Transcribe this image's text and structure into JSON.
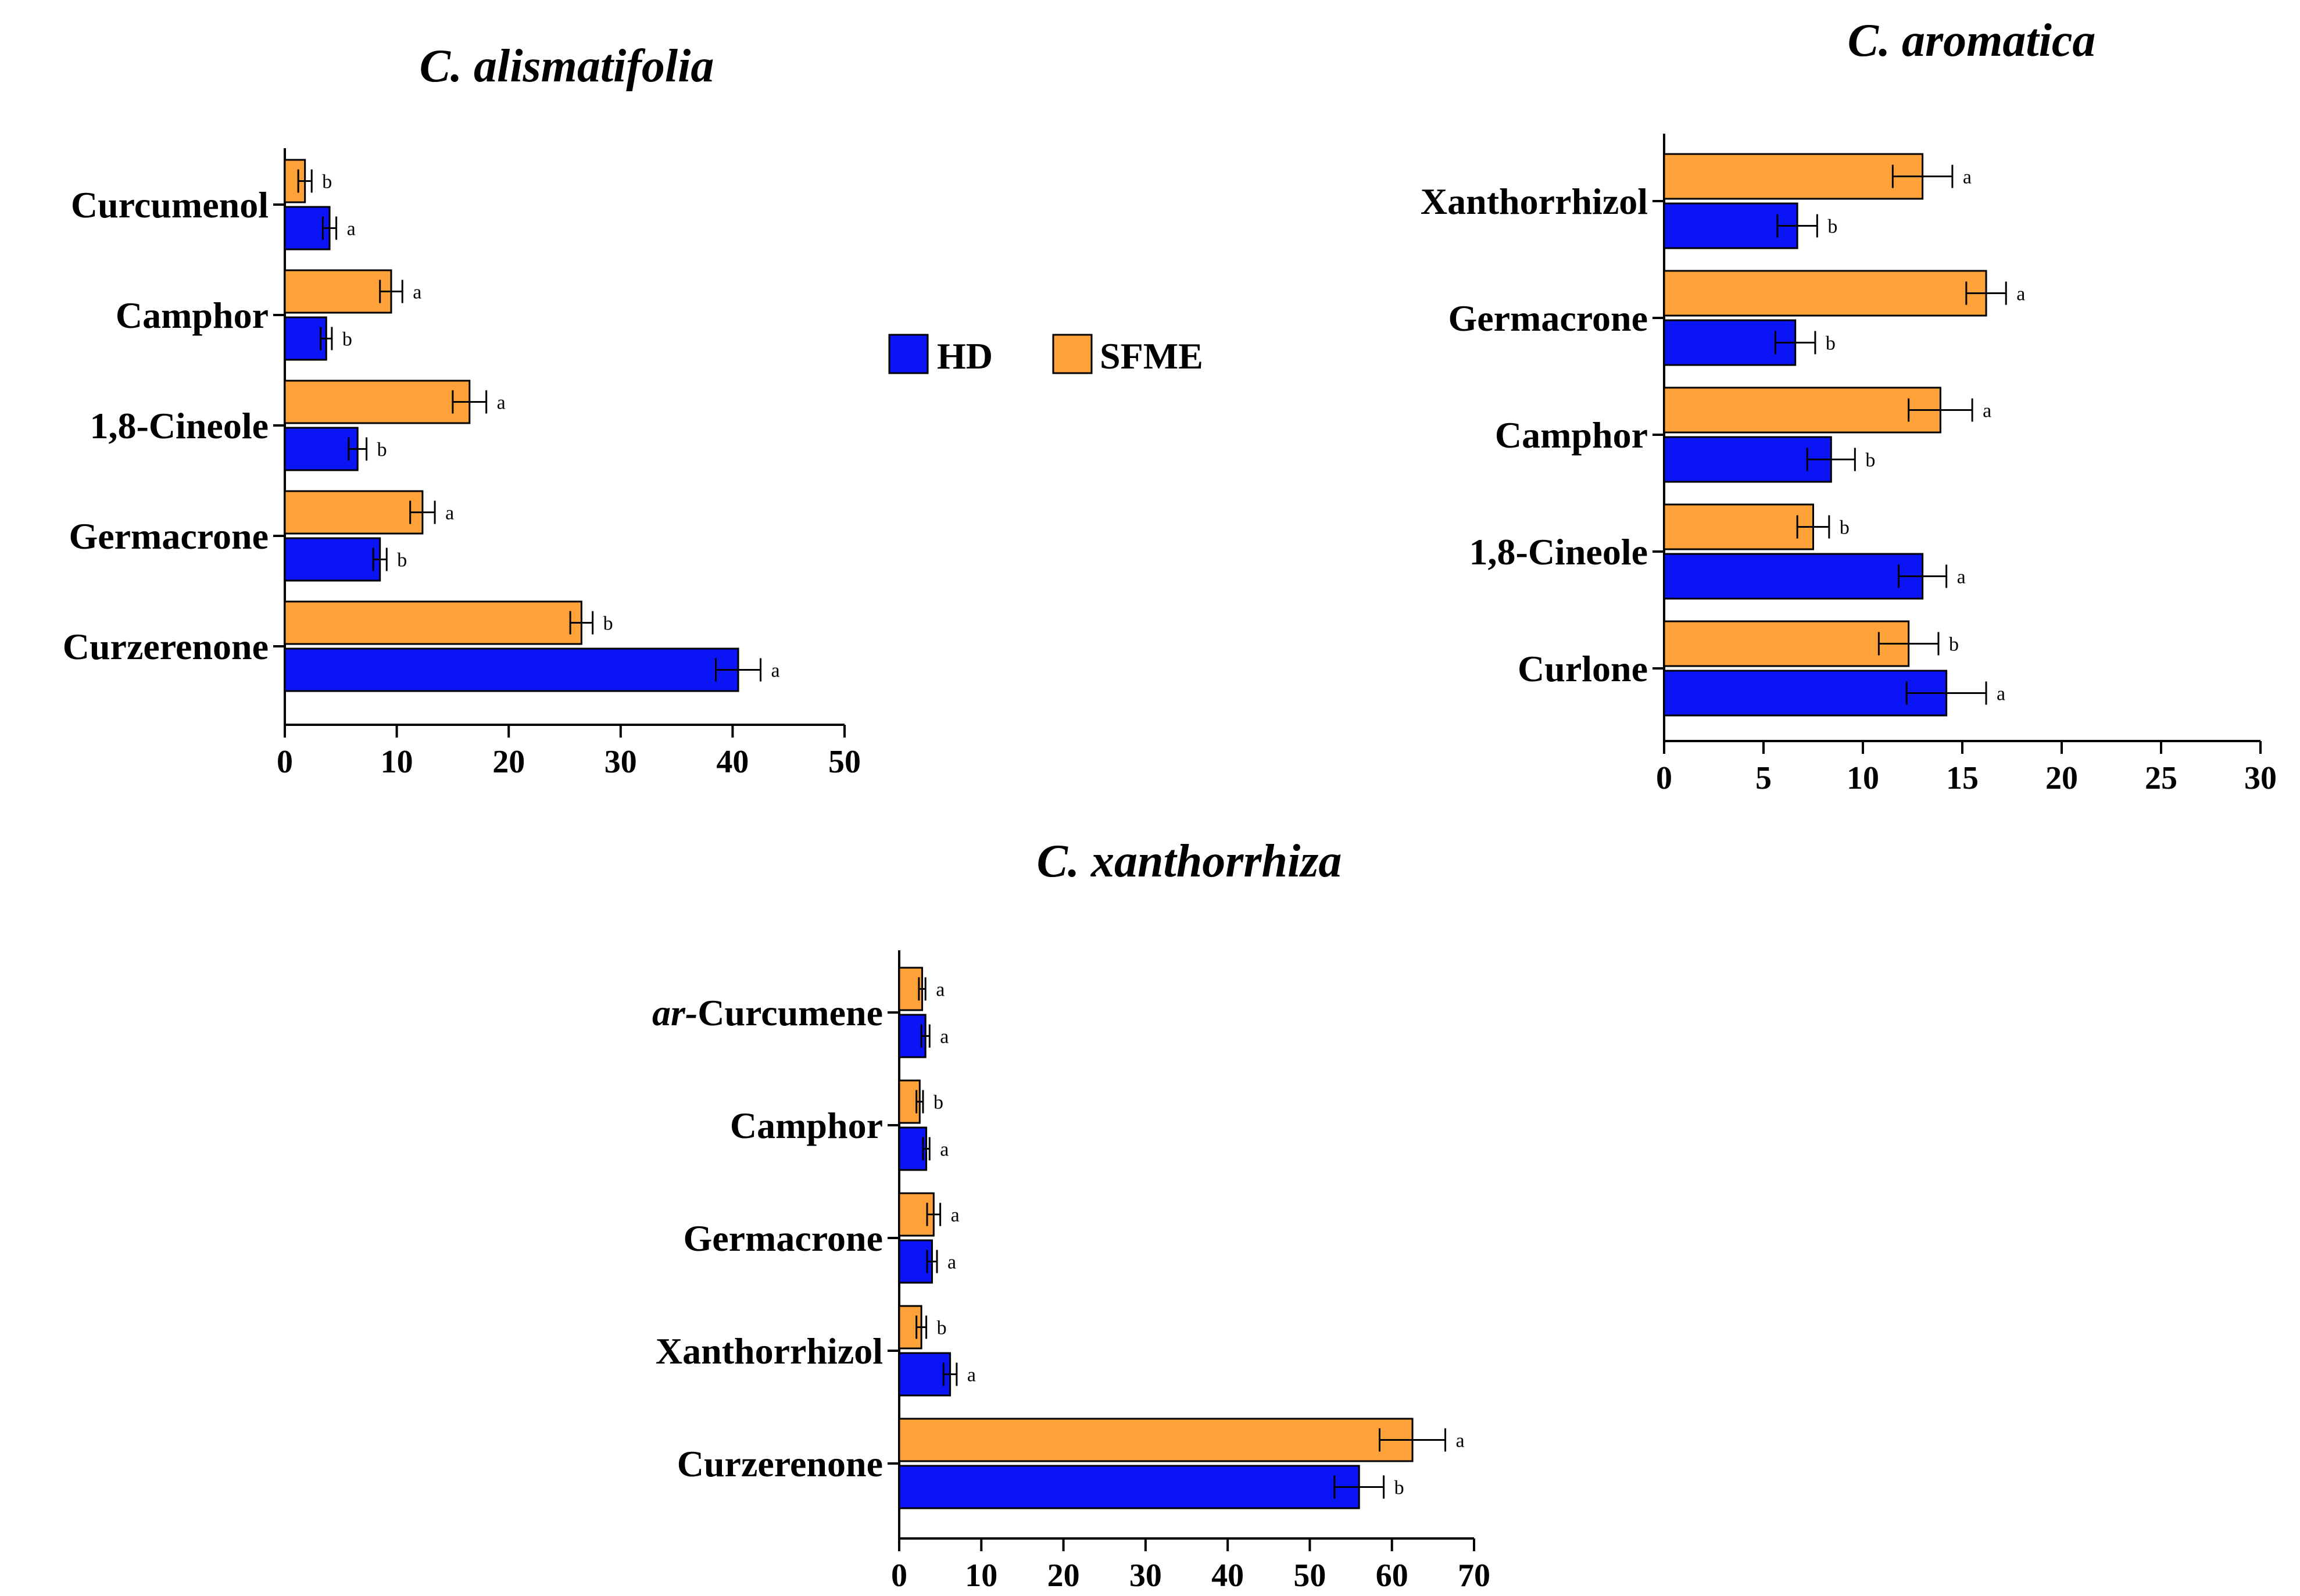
{
  "legend": {
    "hd_label": "HD",
    "sfme_label": "SFME"
  },
  "colors": {
    "HD": "#0a14f5",
    "SFME": "#ffa23a",
    "axis": "#000000"
  },
  "chart_data": [
    {
      "type": "bar",
      "orientation": "horizontal",
      "title": "C. alismatifolia",
      "categories": [
        "Curcumenol",
        "Camphor",
        "1,8-Cineole",
        "Germacrone",
        "Curzerenone"
      ],
      "category_prefix_italic": [
        "",
        "",
        "",
        "",
        ""
      ],
      "xlim": [
        0,
        50
      ],
      "xticks": [
        0,
        10,
        20,
        30,
        40,
        50
      ],
      "series": [
        {
          "name": "SFME",
          "values": [
            1.8,
            9.5,
            16.5,
            12.3,
            26.5
          ],
          "errors": [
            0.6,
            1.0,
            1.5,
            1.1,
            1.0
          ],
          "labels": [
            "b",
            "a",
            "a",
            "a",
            "b"
          ]
        },
        {
          "name": "HD",
          "values": [
            4.0,
            3.7,
            6.5,
            8.5,
            40.5
          ],
          "errors": [
            0.6,
            0.5,
            0.8,
            0.6,
            2.0
          ],
          "labels": [
            "a",
            "b",
            "b",
            "b",
            "a"
          ]
        }
      ]
    },
    {
      "type": "bar",
      "orientation": "horizontal",
      "title": "C. aromatica",
      "categories": [
        "Xanthorrhizol",
        "Germacrone",
        "Camphor",
        "1,8-Cineole",
        "Curlone"
      ],
      "category_prefix_italic": [
        "",
        "",
        "",
        "",
        ""
      ],
      "xlim": [
        0,
        30
      ],
      "xticks": [
        0,
        5,
        10,
        15,
        20,
        25,
        30
      ],
      "series": [
        {
          "name": "SFME",
          "values": [
            13.0,
            16.2,
            13.9,
            7.5,
            12.3
          ],
          "errors": [
            1.5,
            1.0,
            1.6,
            0.8,
            1.5
          ],
          "labels": [
            "a",
            "a",
            "a",
            "b",
            "b"
          ]
        },
        {
          "name": "HD",
          "values": [
            6.7,
            6.6,
            8.4,
            13.0,
            14.2
          ],
          "errors": [
            1.0,
            1.0,
            1.2,
            1.2,
            2.0
          ],
          "labels": [
            "b",
            "b",
            "b",
            "a",
            "a"
          ]
        }
      ]
    },
    {
      "type": "bar",
      "orientation": "horizontal",
      "title": "C. xanthorrhiza",
      "categories": [
        "Curcumene",
        "Camphor",
        "Germacrone",
        "Xanthorrhizol",
        "Curzerenone"
      ],
      "category_prefix_italic": [
        "ar-",
        "",
        "",
        "",
        ""
      ],
      "xlim": [
        0,
        70
      ],
      "xticks": [
        0,
        10,
        20,
        30,
        40,
        50,
        60,
        70
      ],
      "series": [
        {
          "name": "SFME",
          "values": [
            2.8,
            2.5,
            4.2,
            2.7,
            62.5
          ],
          "errors": [
            0.4,
            0.4,
            0.8,
            0.6,
            4.0
          ],
          "labels": [
            "a",
            "b",
            "a",
            "b",
            "a"
          ]
        },
        {
          "name": "HD",
          "values": [
            3.2,
            3.3,
            4.0,
            6.2,
            56.0
          ],
          "errors": [
            0.5,
            0.4,
            0.6,
            0.8,
            3.0
          ],
          "labels": [
            "a",
            "a",
            "a",
            "a",
            "b"
          ]
        }
      ]
    }
  ]
}
